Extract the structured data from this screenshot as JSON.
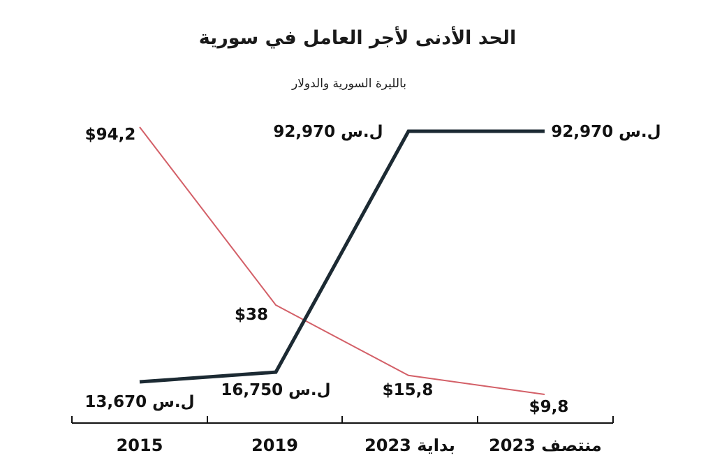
{
  "chart_data": {
    "type": "line",
    "title": "الحد الأدنى لأجر العامل في سورية",
    "subtitle": "بالليرة السورية والدولار",
    "categories": [
      "2015",
      "2019",
      "بداية 2023",
      "منتصف 2023"
    ],
    "series": [
      {
        "values": [
          13670,
          16750,
          92970,
          92970
        ],
        "labels": [
          "ل.س 13,670",
          "ل.س 16,750",
          "ل.س 92,970",
          "ل.س 92,970"
        ],
        "color": "#1c2a33"
      },
      {
        "values": [
          94.2,
          38,
          15.8,
          9.8
        ],
        "labels": [
          "$94,2",
          "$38",
          "$15,8",
          "$9,8"
        ],
        "color": "#d35f67"
      }
    ],
    "legend": "none",
    "grid": false
  }
}
